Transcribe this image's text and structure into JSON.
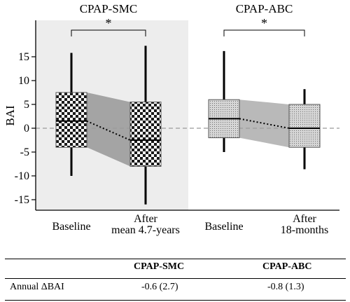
{
  "chart_data": {
    "type": "box",
    "ylabel": "BAI",
    "ylim": [
      -17,
      19
    ],
    "yticks": [
      15,
      10,
      5,
      0,
      -5,
      -10,
      -15
    ],
    "reference_line": 0,
    "groups": [
      {
        "title": "CPAP-SMC",
        "significance": "*",
        "shaded_background": true,
        "box_pattern": "checkerboard",
        "boxes": [
          {
            "label": "Baseline",
            "whisker_low": -10,
            "q1": -4,
            "median": 1.5,
            "q3": 7.5,
            "whisker_high": 15.8
          },
          {
            "label": "After\nmean 4.7-years",
            "whisker_low": -16,
            "q1": -8,
            "median": -2.5,
            "q3": 5.5,
            "whisker_high": 17.3
          }
        ]
      },
      {
        "title": "CPAP-ABC",
        "significance": "*",
        "shaded_background": false,
        "box_pattern": "fine-dots",
        "boxes": [
          {
            "label": "Baseline",
            "whisker_low": -5,
            "q1": -2,
            "median": 2,
            "q3": 6,
            "whisker_high": 16.2
          },
          {
            "label": "After\n18-months",
            "whisker_low": -8.6,
            "q1": -4,
            "median": 0,
            "q3": 5,
            "whisker_high": 8.2
          }
        ]
      }
    ]
  },
  "table": {
    "headers": [
      "",
      "CPAP-SMC",
      "CPAP-ABC"
    ],
    "rows": [
      {
        "label": "Annual ΔBAI",
        "smc": "-0.6 (2.7)",
        "abc": "-0.8 (1.3)"
      }
    ]
  }
}
